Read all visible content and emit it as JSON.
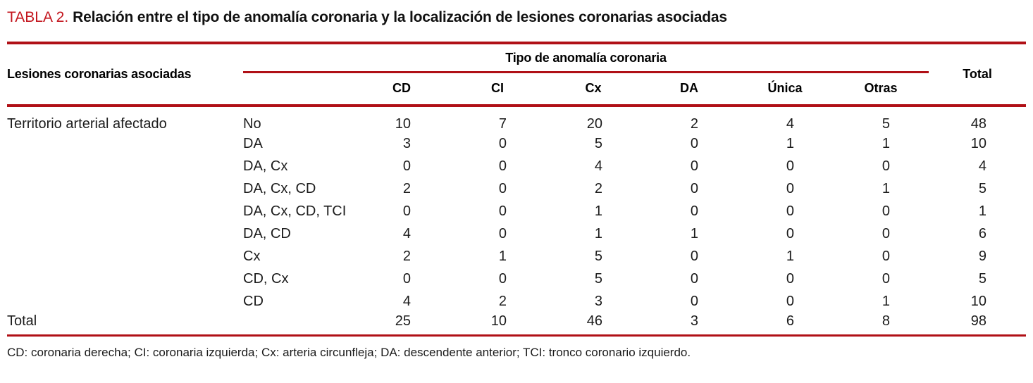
{
  "title": {
    "tag": "TABLA 2.",
    "text": "Relación entre el tipo de anomalía coronaria y la localización de lesiones coronarias asociadas"
  },
  "table": {
    "col1_header": "Lesiones coronarias asociadas",
    "group_header": "Tipo de anomalía coronaria",
    "total_header": "Total",
    "columns": [
      "CD",
      "CI",
      "Cx",
      "DA",
      "Única",
      "Otras"
    ],
    "row_group": "Territorio arterial afectado",
    "rows": [
      {
        "label": "No",
        "values": [
          10,
          7,
          20,
          2,
          4,
          5
        ],
        "total": 48
      },
      {
        "label": "DA",
        "values": [
          3,
          0,
          5,
          0,
          1,
          1
        ],
        "total": 10
      },
      {
        "label": "DA, Cx",
        "values": [
          0,
          0,
          4,
          0,
          0,
          0
        ],
        "total": 4
      },
      {
        "label": "DA, Cx, CD",
        "values": [
          2,
          0,
          2,
          0,
          0,
          1
        ],
        "total": 5
      },
      {
        "label": "DA, Cx, CD, TCI",
        "values": [
          0,
          0,
          1,
          0,
          0,
          0
        ],
        "total": 1
      },
      {
        "label": "DA, CD",
        "values": [
          4,
          0,
          1,
          1,
          0,
          0
        ],
        "total": 6
      },
      {
        "label": "Cx",
        "values": [
          2,
          1,
          5,
          0,
          1,
          0
        ],
        "total": 9
      },
      {
        "label": "CD, Cx",
        "values": [
          0,
          0,
          5,
          0,
          0,
          0
        ],
        "total": 5
      },
      {
        "label": "CD",
        "values": [
          4,
          2,
          3,
          0,
          0,
          1
        ],
        "total": 10
      }
    ],
    "total_row": {
      "label": "Total",
      "values": [
        25,
        10,
        46,
        3,
        6,
        8
      ],
      "total": 98
    }
  },
  "footnote": "CD: coronaria derecha; CI: coronaria izquierda; Cx: arteria circunfleja; DA: descendente anterior; TCI: tronco coronario izquierdo.",
  "colors": {
    "rule_red": "#b01016",
    "title_red": "#c3161e"
  },
  "chart_data": {
    "type": "table",
    "title": "TABLA 2. Relación entre el tipo de anomalía coronaria y la localización de lesiones coronarias asociadas",
    "column_group": "Tipo de anomalía coronaria",
    "columns": [
      "Lesiones coronarias asociadas",
      "",
      "CD",
      "CI",
      "Cx",
      "DA",
      "Única",
      "Otras",
      "Total"
    ],
    "rows": [
      [
        "Territorio arterial afectado",
        "No",
        10,
        7,
        20,
        2,
        4,
        5,
        48
      ],
      [
        "",
        "DA",
        3,
        0,
        5,
        0,
        1,
        1,
        10
      ],
      [
        "",
        "DA, Cx",
        0,
        0,
        4,
        0,
        0,
        0,
        4
      ],
      [
        "",
        "DA, Cx, CD",
        2,
        0,
        2,
        0,
        0,
        1,
        5
      ],
      [
        "",
        "DA, Cx, CD, TCI",
        0,
        0,
        1,
        0,
        0,
        0,
        1
      ],
      [
        "",
        "DA, CD",
        4,
        0,
        1,
        1,
        0,
        0,
        6
      ],
      [
        "",
        "Cx",
        2,
        1,
        5,
        0,
        1,
        0,
        9
      ],
      [
        "",
        "CD, Cx",
        0,
        0,
        5,
        0,
        0,
        0,
        5
      ],
      [
        "",
        "CD",
        4,
        2,
        3,
        0,
        0,
        1,
        10
      ],
      [
        "Total",
        "",
        25,
        10,
        46,
        3,
        6,
        8,
        98
      ]
    ]
  }
}
